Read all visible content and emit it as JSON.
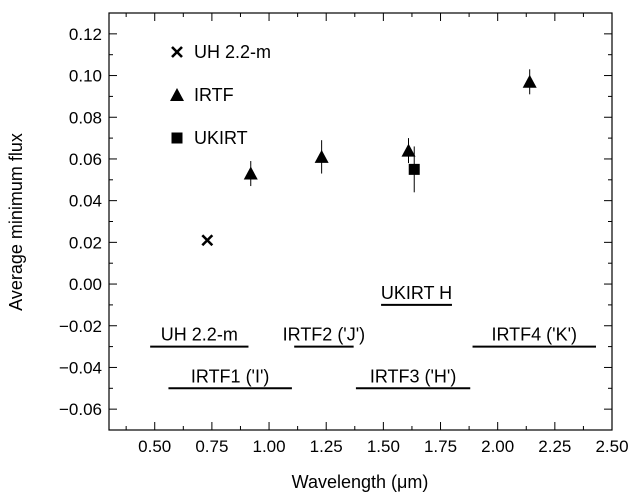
{
  "chart_data": {
    "type": "scatter",
    "xlabel": "Wavelength (μm)",
    "ylabel": "Average minimum flux",
    "xlim": [
      0.3,
      2.5
    ],
    "ylim": [
      -0.07,
      0.13
    ],
    "x_ticks": [
      "0.50",
      "0.75",
      "1.00",
      "1.25",
      "1.50",
      "1.75",
      "2.00",
      "2.25",
      "2.50"
    ],
    "y_ticks": [
      "−0.06",
      "−0.04",
      "−0.02",
      "0.00",
      "0.02",
      "0.04",
      "0.06",
      "0.08",
      "0.10",
      "0.12"
    ],
    "grid": false,
    "legend_position": "top-left",
    "series": [
      {
        "name": "UH 2.2-m",
        "marker": "cross",
        "points": [
          {
            "x": 0.73,
            "y": 0.021,
            "err": 0
          }
        ]
      },
      {
        "name": "IRTF",
        "marker": "triangle",
        "points": [
          {
            "x": 0.92,
            "y": 0.053,
            "err": 0.006
          },
          {
            "x": 1.23,
            "y": 0.061,
            "err": 0.008
          },
          {
            "x": 1.61,
            "y": 0.064,
            "err": 0.006
          },
          {
            "x": 2.14,
            "y": 0.097,
            "err": 0.006
          }
        ]
      },
      {
        "name": "UKIRT",
        "marker": "square",
        "points": [
          {
            "x": 1.635,
            "y": 0.055,
            "err": 0.011
          }
        ]
      }
    ],
    "filter_bands": [
      {
        "label": "UH 2.2-m",
        "x1": 0.48,
        "x2": 0.91,
        "y": -0.03
      },
      {
        "label": "IRTF1 ('I')",
        "x1": 0.56,
        "x2": 1.1,
        "y": -0.05
      },
      {
        "label": "IRTF2 ('J')",
        "x1": 1.11,
        "x2": 1.37,
        "y": -0.03
      },
      {
        "label": "IRTF3 ('H')",
        "x1": 1.38,
        "x2": 1.88,
        "y": -0.05
      },
      {
        "label": "UKIRT H",
        "x1": 1.49,
        "x2": 1.8,
        "y": -0.01
      },
      {
        "label": "IRTF4 ('K')",
        "x1": 1.89,
        "x2": 2.43,
        "y": -0.03
      }
    ]
  }
}
